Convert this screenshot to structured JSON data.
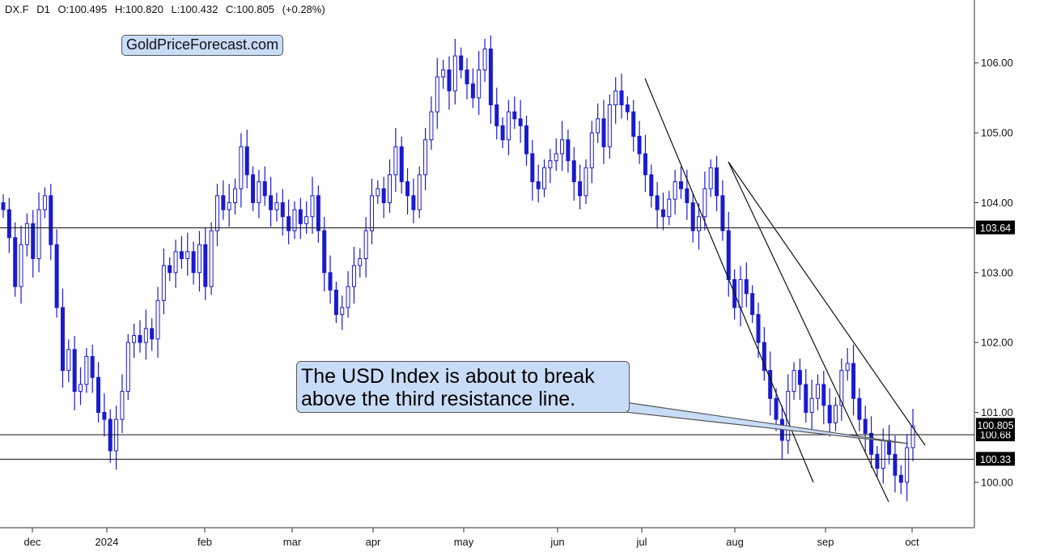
{
  "header": {
    "symbol": "DX.F",
    "timeframe": "D1",
    "open": "O:100.495",
    "high": "H:100.820",
    "low": "L:100.432",
    "close": "C:100.805",
    "change": "(+0.28%)"
  },
  "brand": "GoldPriceForecast.com",
  "annotation": {
    "line1": "The USD Index is about to break",
    "line2": "above the third resistance line."
  },
  "colors": {
    "candle": "#1a1ad0",
    "line": "#111111",
    "callout_fill": "#c9dcf7"
  },
  "chart_data": {
    "type": "candlestick",
    "title": "",
    "xlabel": "",
    "ylabel": "",
    "x_ticks": [
      "dec",
      "2024",
      "feb",
      "mar",
      "apr",
      "may",
      "jun",
      "jul",
      "aug",
      "sep",
      "oct"
    ],
    "y_ticks": [
      "100.00",
      "101.00",
      "102.00",
      "103.00",
      "104.00",
      "105.00",
      "106.00"
    ],
    "ylim": [
      99.35,
      106.9
    ],
    "grid": false,
    "horizontal_levels": [
      {
        "value": 103.64,
        "label": "103.64"
      },
      {
        "value": 100.68,
        "label": "100.68"
      },
      {
        "value": 100.33,
        "label": "100.33"
      }
    ],
    "last_price": {
      "value": 100.805,
      "label": "100.805"
    },
    "closes": [
      103.9,
      103.5,
      102.8,
      103.4,
      103.7,
      103.2,
      103.9,
      104.1,
      103.4,
      102.5,
      101.6,
      101.9,
      101.3,
      101.4,
      101.8,
      101.5,
      101.0,
      100.9,
      100.45,
      100.9,
      101.3,
      102.0,
      102.1,
      102.0,
      102.2,
      102.05,
      102.6,
      103.1,
      103.0,
      103.3,
      103.2,
      103.3,
      103.0,
      103.4,
      102.8,
      103.6,
      104.1,
      103.9,
      104.0,
      104.2,
      104.8,
      104.4,
      104.0,
      104.3,
      104.1,
      103.9,
      104.0,
      103.8,
      103.6,
      103.9,
      103.7,
      103.8,
      104.1,
      103.6,
      103.0,
      102.75,
      102.4,
      102.5,
      102.8,
      103.1,
      103.2,
      103.6,
      104.1,
      104.2,
      104.0,
      104.4,
      104.8,
      104.3,
      104.1,
      103.9,
      104.4,
      104.9,
      105.3,
      105.8,
      105.9,
      105.6,
      106.1,
      105.9,
      105.7,
      105.5,
      105.9,
      106.2,
      105.4,
      105.1,
      104.9,
      105.3,
      105.2,
      105.1,
      104.7,
      104.3,
      104.2,
      104.5,
      104.6,
      104.7,
      104.9,
      104.6,
      104.3,
      104.1,
      104.5,
      105.0,
      105.2,
      104.8,
      105.4,
      105.6,
      105.4,
      105.3,
      104.95,
      104.7,
      104.4,
      104.1,
      103.9,
      103.8,
      104.05,
      104.3,
      104.2,
      104.0,
      103.6,
      103.8,
      104.2,
      104.5,
      104.1,
      103.6,
      102.9,
      102.5,
      102.9,
      102.7,
      102.4,
      102.0,
      101.6,
      101.2,
      100.9,
      100.6,
      101.3,
      101.6,
      101.4,
      101.0,
      101.2,
      101.4,
      101.1,
      100.85,
      101.1,
      101.6,
      101.7,
      101.2,
      100.9,
      100.7,
      100.4,
      100.2,
      100.6,
      100.4,
      100.1,
      100.0,
      100.495,
      100.805
    ]
  }
}
